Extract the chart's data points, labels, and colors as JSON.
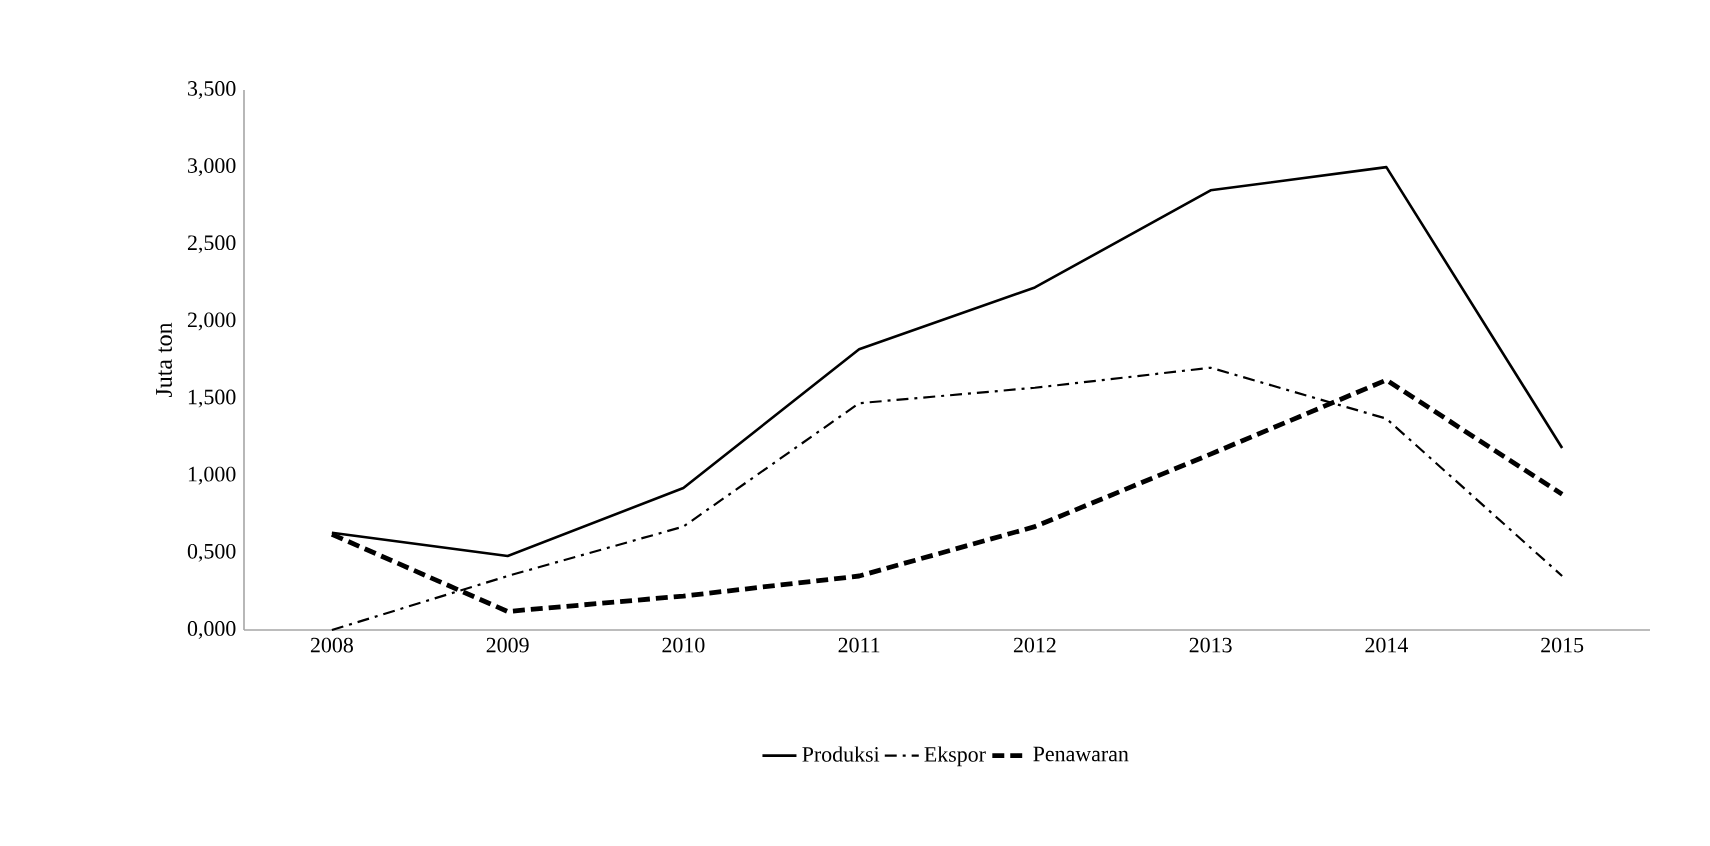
{
  "chart_data": {
    "type": "line",
    "ylabel": "Juta ton",
    "categories": [
      "2008",
      "2009",
      "2010",
      "2011",
      "2012",
      "2013",
      "2014",
      "2015"
    ],
    "series": [
      {
        "name": "Produksi",
        "color": "#000000",
        "line_style": "solid",
        "values": [
          0.63,
          0.48,
          0.92,
          1.82,
          2.22,
          2.85,
          3.0,
          1.18
        ]
      },
      {
        "name": "Ekspor",
        "color": "#000000",
        "line_style": "dashdot",
        "values": [
          0.0,
          0.35,
          0.67,
          1.47,
          1.57,
          1.7,
          1.37,
          0.35
        ]
      },
      {
        "name": "Penawaran",
        "color": "#000000",
        "line_style": "dashed",
        "values": [
          0.62,
          0.12,
          0.22,
          0.35,
          0.67,
          1.14,
          1.62,
          0.88
        ]
      }
    ],
    "ylim": [
      0,
      3.5
    ],
    "yticks": [
      {
        "value": 0,
        "label": "0,000"
      },
      {
        "value": 0.5,
        "label": "0,500"
      },
      {
        "value": 1,
        "label": "1,000"
      },
      {
        "value": 1.5,
        "label": "1,500"
      },
      {
        "value": 2,
        "label": "2,000"
      },
      {
        "value": 2.5,
        "label": "2,500"
      },
      {
        "value": 3,
        "label": "3,000"
      },
      {
        "value": 3.5,
        "label": "3,500"
      }
    ],
    "grid": false,
    "legend": "bottom",
    "marker": "none"
  }
}
